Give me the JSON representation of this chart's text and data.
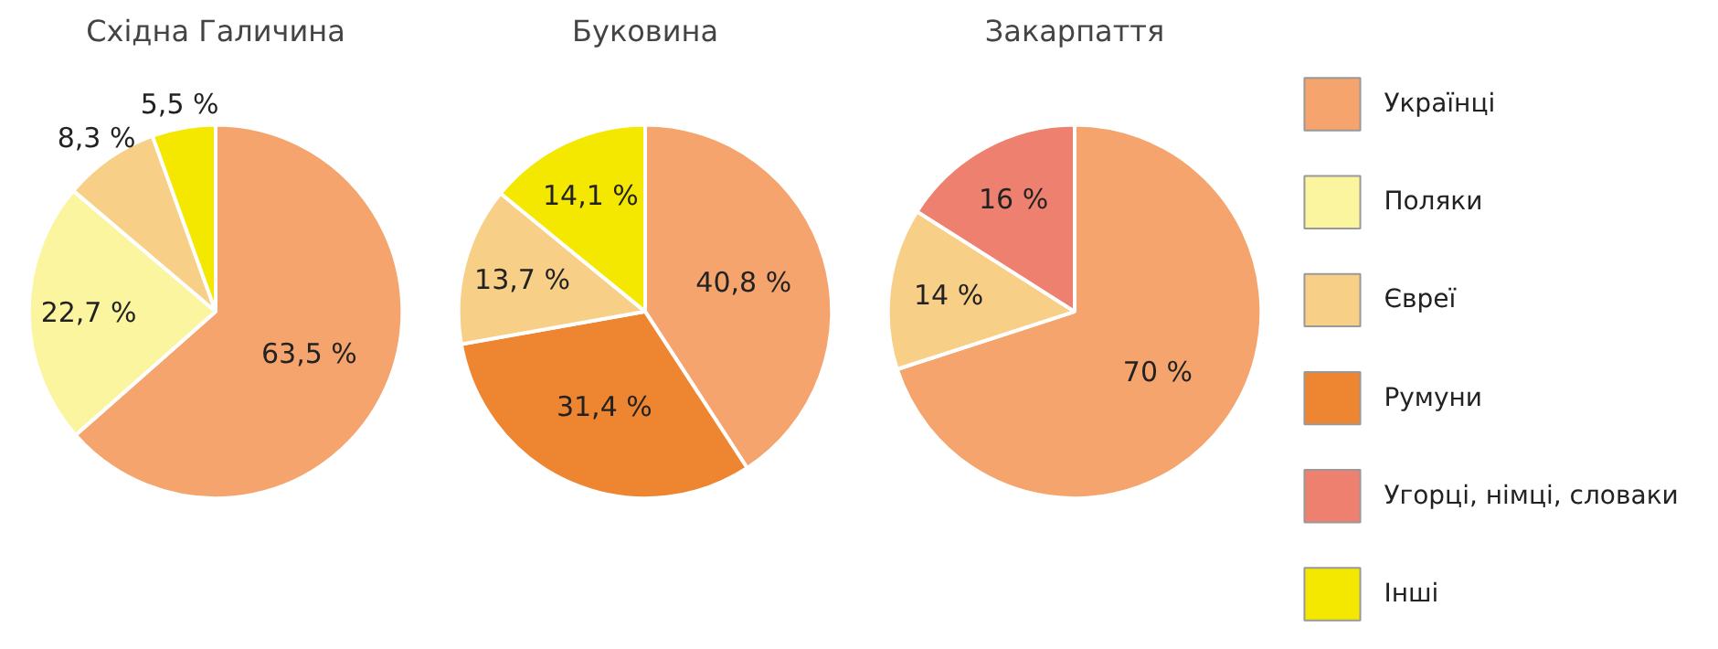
{
  "chart_data": [
    {
      "type": "pie",
      "title": "Східна Галичина",
      "categories": [
        null,
        null,
        null,
        null
      ],
      "values": [
        63.5,
        22.7,
        8.3,
        5.5
      ],
      "colors": [
        "#f4a46c",
        "#fbf5a0",
        "#f8cf86",
        "#f5e800"
      ],
      "value_labels": [
        "63,5 %",
        "22,7 %",
        "8,3 %",
        "5,5 %"
      ]
    },
    {
      "type": "pie",
      "title": "Буковина",
      "categories": [
        null,
        null,
        null,
        null
      ],
      "values": [
        40.8,
        31.4,
        13.7,
        14.1
      ],
      "colors": [
        "#f4a46c",
        "#ee8530",
        "#f8cf86",
        "#f5e800"
      ],
      "value_labels": [
        "40,8 %",
        "31,4 %",
        "13,7 %",
        "14,1 %"
      ]
    },
    {
      "type": "pie",
      "title": "Закарпаття",
      "categories": [
        null,
        null,
        null
      ],
      "values": [
        70,
        14,
        16
      ],
      "colors": [
        "#f4a46c",
        "#f8cf86",
        "#ee8070"
      ],
      "value_labels": [
        "70 %",
        "14 %",
        "16 %"
      ]
    },
    {
      "type": "other",
      "categories": [
        "Українці",
        "Поляки",
        "Євреї",
        "Румуни",
        "Угорці, німці, словаки",
        "Інші"
      ],
      "colors": [
        "#f4a46c",
        "#fbf5a0",
        "#f8cf86",
        "#ee8530",
        "#ee8070",
        "#f5e800"
      ]
    }
  ]
}
